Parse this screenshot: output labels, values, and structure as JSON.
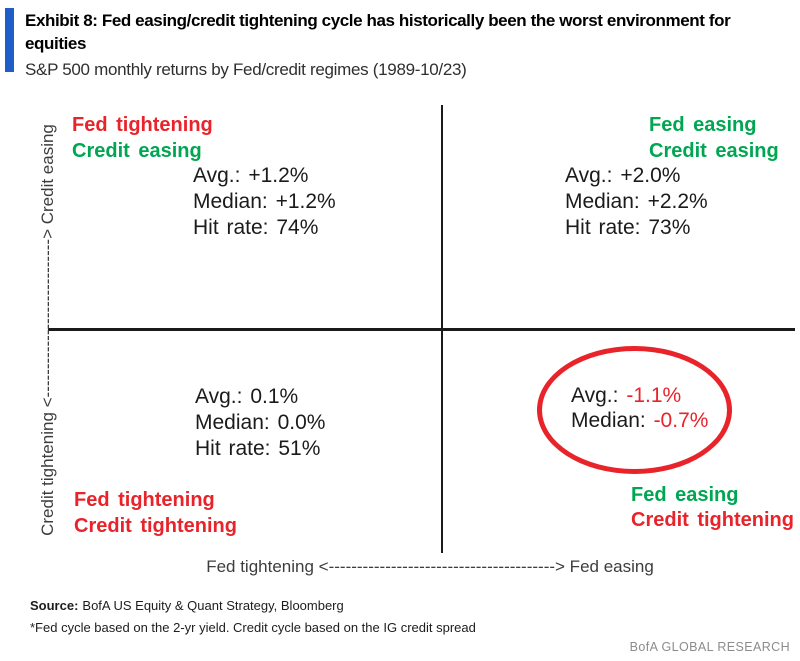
{
  "header": {
    "title": "Exhibit 8: Fed easing/credit tightening cycle has historically been the worst environment for equities",
    "subtitle": "S&P 500 monthly returns by Fed/credit regimes (1989-10/23)"
  },
  "colors": {
    "red": "#e8232a",
    "green": "#00a651",
    "blue_bar": "#1f5ec9",
    "axis_text": "#3d3d3d",
    "stat_text": "#1b1b1b",
    "brand_gray": "#8c8c8c"
  },
  "axes": {
    "y_label": "Credit tightening <----------------------------> Credit easing",
    "x_label": "Fed tightening <----------------------------------------> Fed easing"
  },
  "quadrants": {
    "top_left": {
      "line1": "Fed tightening",
      "line2": "Credit easing",
      "stats": [
        {
          "label": "Avg.:",
          "value": "+1.2%"
        },
        {
          "label": "Median:",
          "value": "+1.2%"
        },
        {
          "label": "Hit rate:",
          "value": "74%"
        }
      ]
    },
    "top_right": {
      "line1": "Fed easing",
      "line2": "Credit easing",
      "stats": [
        {
          "label": "Avg.:",
          "value": "+2.0%"
        },
        {
          "label": "Median:",
          "value": "+2.2%"
        },
        {
          "label": "Hit rate:",
          "value": "73%"
        }
      ]
    },
    "bottom_left": {
      "line1": "Fed tightening",
      "line2": "Credit tightening",
      "stats": [
        {
          "label": "Avg.:",
          "value": "0.1%"
        },
        {
          "label": "Median:",
          "value": "0.0%"
        },
        {
          "label": "Hit rate:",
          "value": "51%"
        }
      ]
    },
    "bottom_right": {
      "line1": "Fed easing",
      "line2": "Credit tightening",
      "stats": [
        {
          "label": "Avg.:",
          "value": "-1.1%"
        },
        {
          "label": "Median:",
          "value": "-0.7%"
        }
      ]
    }
  },
  "footer": {
    "source_label": "Source:",
    "source_text": "BofA US Equity & Quant Strategy, Bloomberg",
    "footnote": "*Fed cycle based on the 2-yr yield. Credit cycle based on the IG credit spread",
    "brand": "BofA GLOBAL RESEARCH"
  },
  "chart_data": {
    "type": "table",
    "title": "Exhibit 8: Fed easing/credit tightening cycle has historically been the worst environment for equities",
    "subtitle": "S&P 500 monthly returns by Fed/credit regimes (1989-10/23)",
    "x_axis": "Fed tightening -> Fed easing",
    "y_axis": "Credit tightening -> Credit easing",
    "quadrants": [
      {
        "position": "top_left",
        "fed": "tightening",
        "credit": "easing",
        "avg_pct": 1.2,
        "median_pct": 1.2,
        "hit_rate_pct": 74,
        "highlighted": false
      },
      {
        "position": "top_right",
        "fed": "easing",
        "credit": "easing",
        "avg_pct": 2.0,
        "median_pct": 2.2,
        "hit_rate_pct": 73,
        "highlighted": false
      },
      {
        "position": "bottom_left",
        "fed": "tightening",
        "credit": "tightening",
        "avg_pct": 0.1,
        "median_pct": 0.0,
        "hit_rate_pct": 51,
        "highlighted": false
      },
      {
        "position": "bottom_right",
        "fed": "easing",
        "credit": "tightening",
        "avg_pct": -1.1,
        "median_pct": -0.7,
        "hit_rate_pct": null,
        "highlighted": true
      }
    ]
  }
}
